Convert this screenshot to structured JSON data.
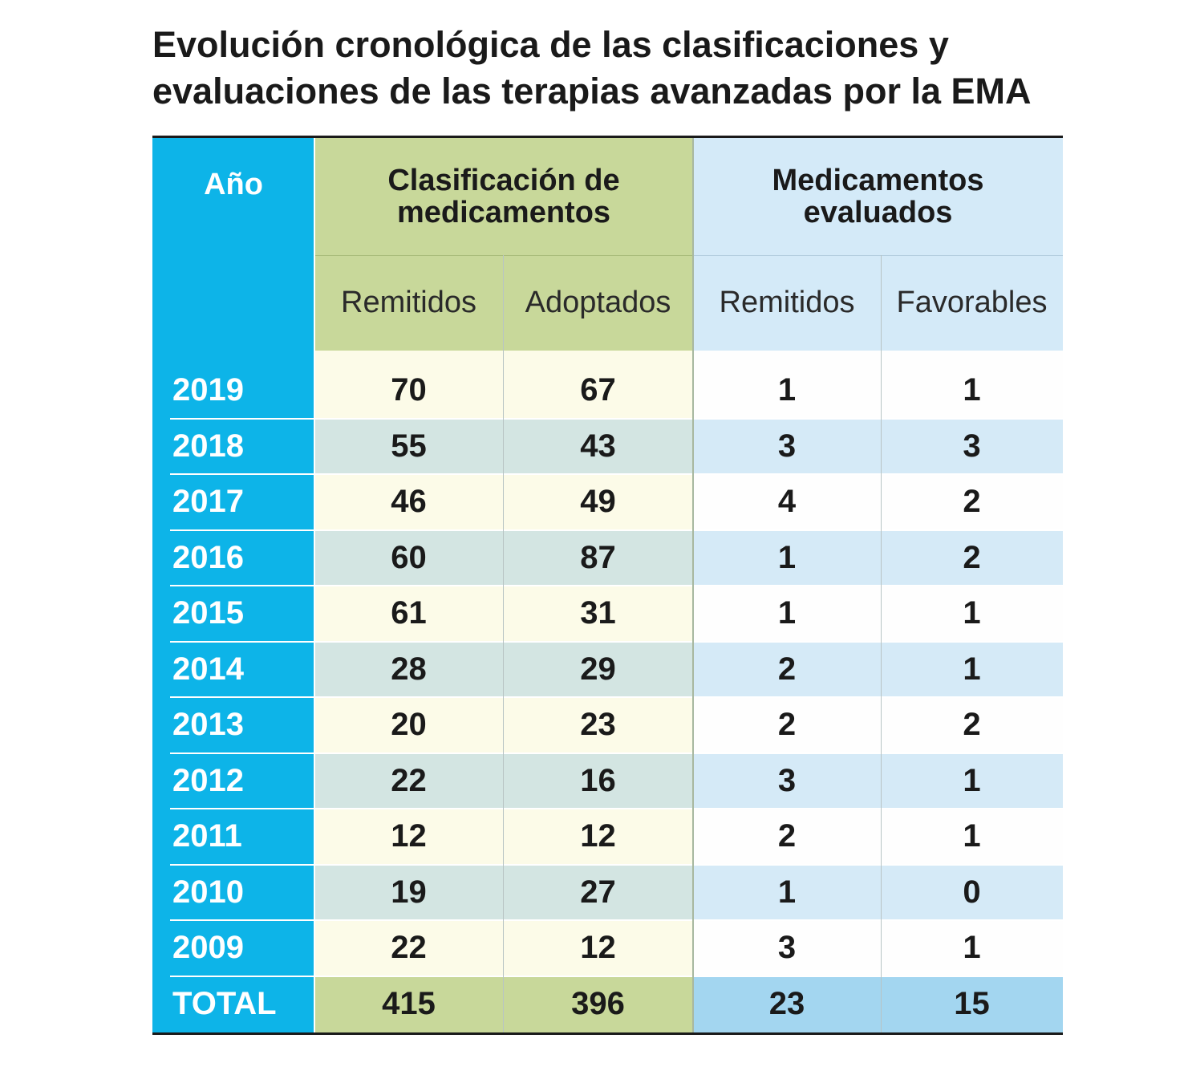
{
  "title": [
    "Evolución cronológica de las clasificaciones y",
    "evaluaciones de las terapias avanzadas por la EMA"
  ],
  "table": {
    "header": {
      "year": "Año",
      "groups": [
        {
          "label": "Clasificación de medicamentos",
          "subcolumns": [
            "Remitidos",
            "Adoptados"
          ]
        },
        {
          "label": "Medicamentos evaluados",
          "subcolumns": [
            "Remitidos",
            "Favorables"
          ]
        }
      ]
    },
    "rows": [
      [
        2019,
        70,
        67,
        1,
        1
      ],
      [
        2018,
        55,
        43,
        3,
        3
      ],
      [
        2017,
        46,
        49,
        4,
        2
      ],
      [
        2016,
        60,
        87,
        1,
        2
      ],
      [
        2015,
        61,
        31,
        1,
        1
      ],
      [
        2014,
        28,
        29,
        2,
        1
      ],
      [
        2013,
        20,
        23,
        2,
        2
      ],
      [
        2012,
        22,
        16,
        3,
        1
      ],
      [
        2011,
        12,
        12,
        2,
        1
      ],
      [
        2010,
        19,
        27,
        1,
        0
      ],
      [
        2009,
        22,
        12,
        3,
        1
      ]
    ],
    "total": [
      "TOTAL",
      415,
      396,
      23,
      15
    ]
  }
}
